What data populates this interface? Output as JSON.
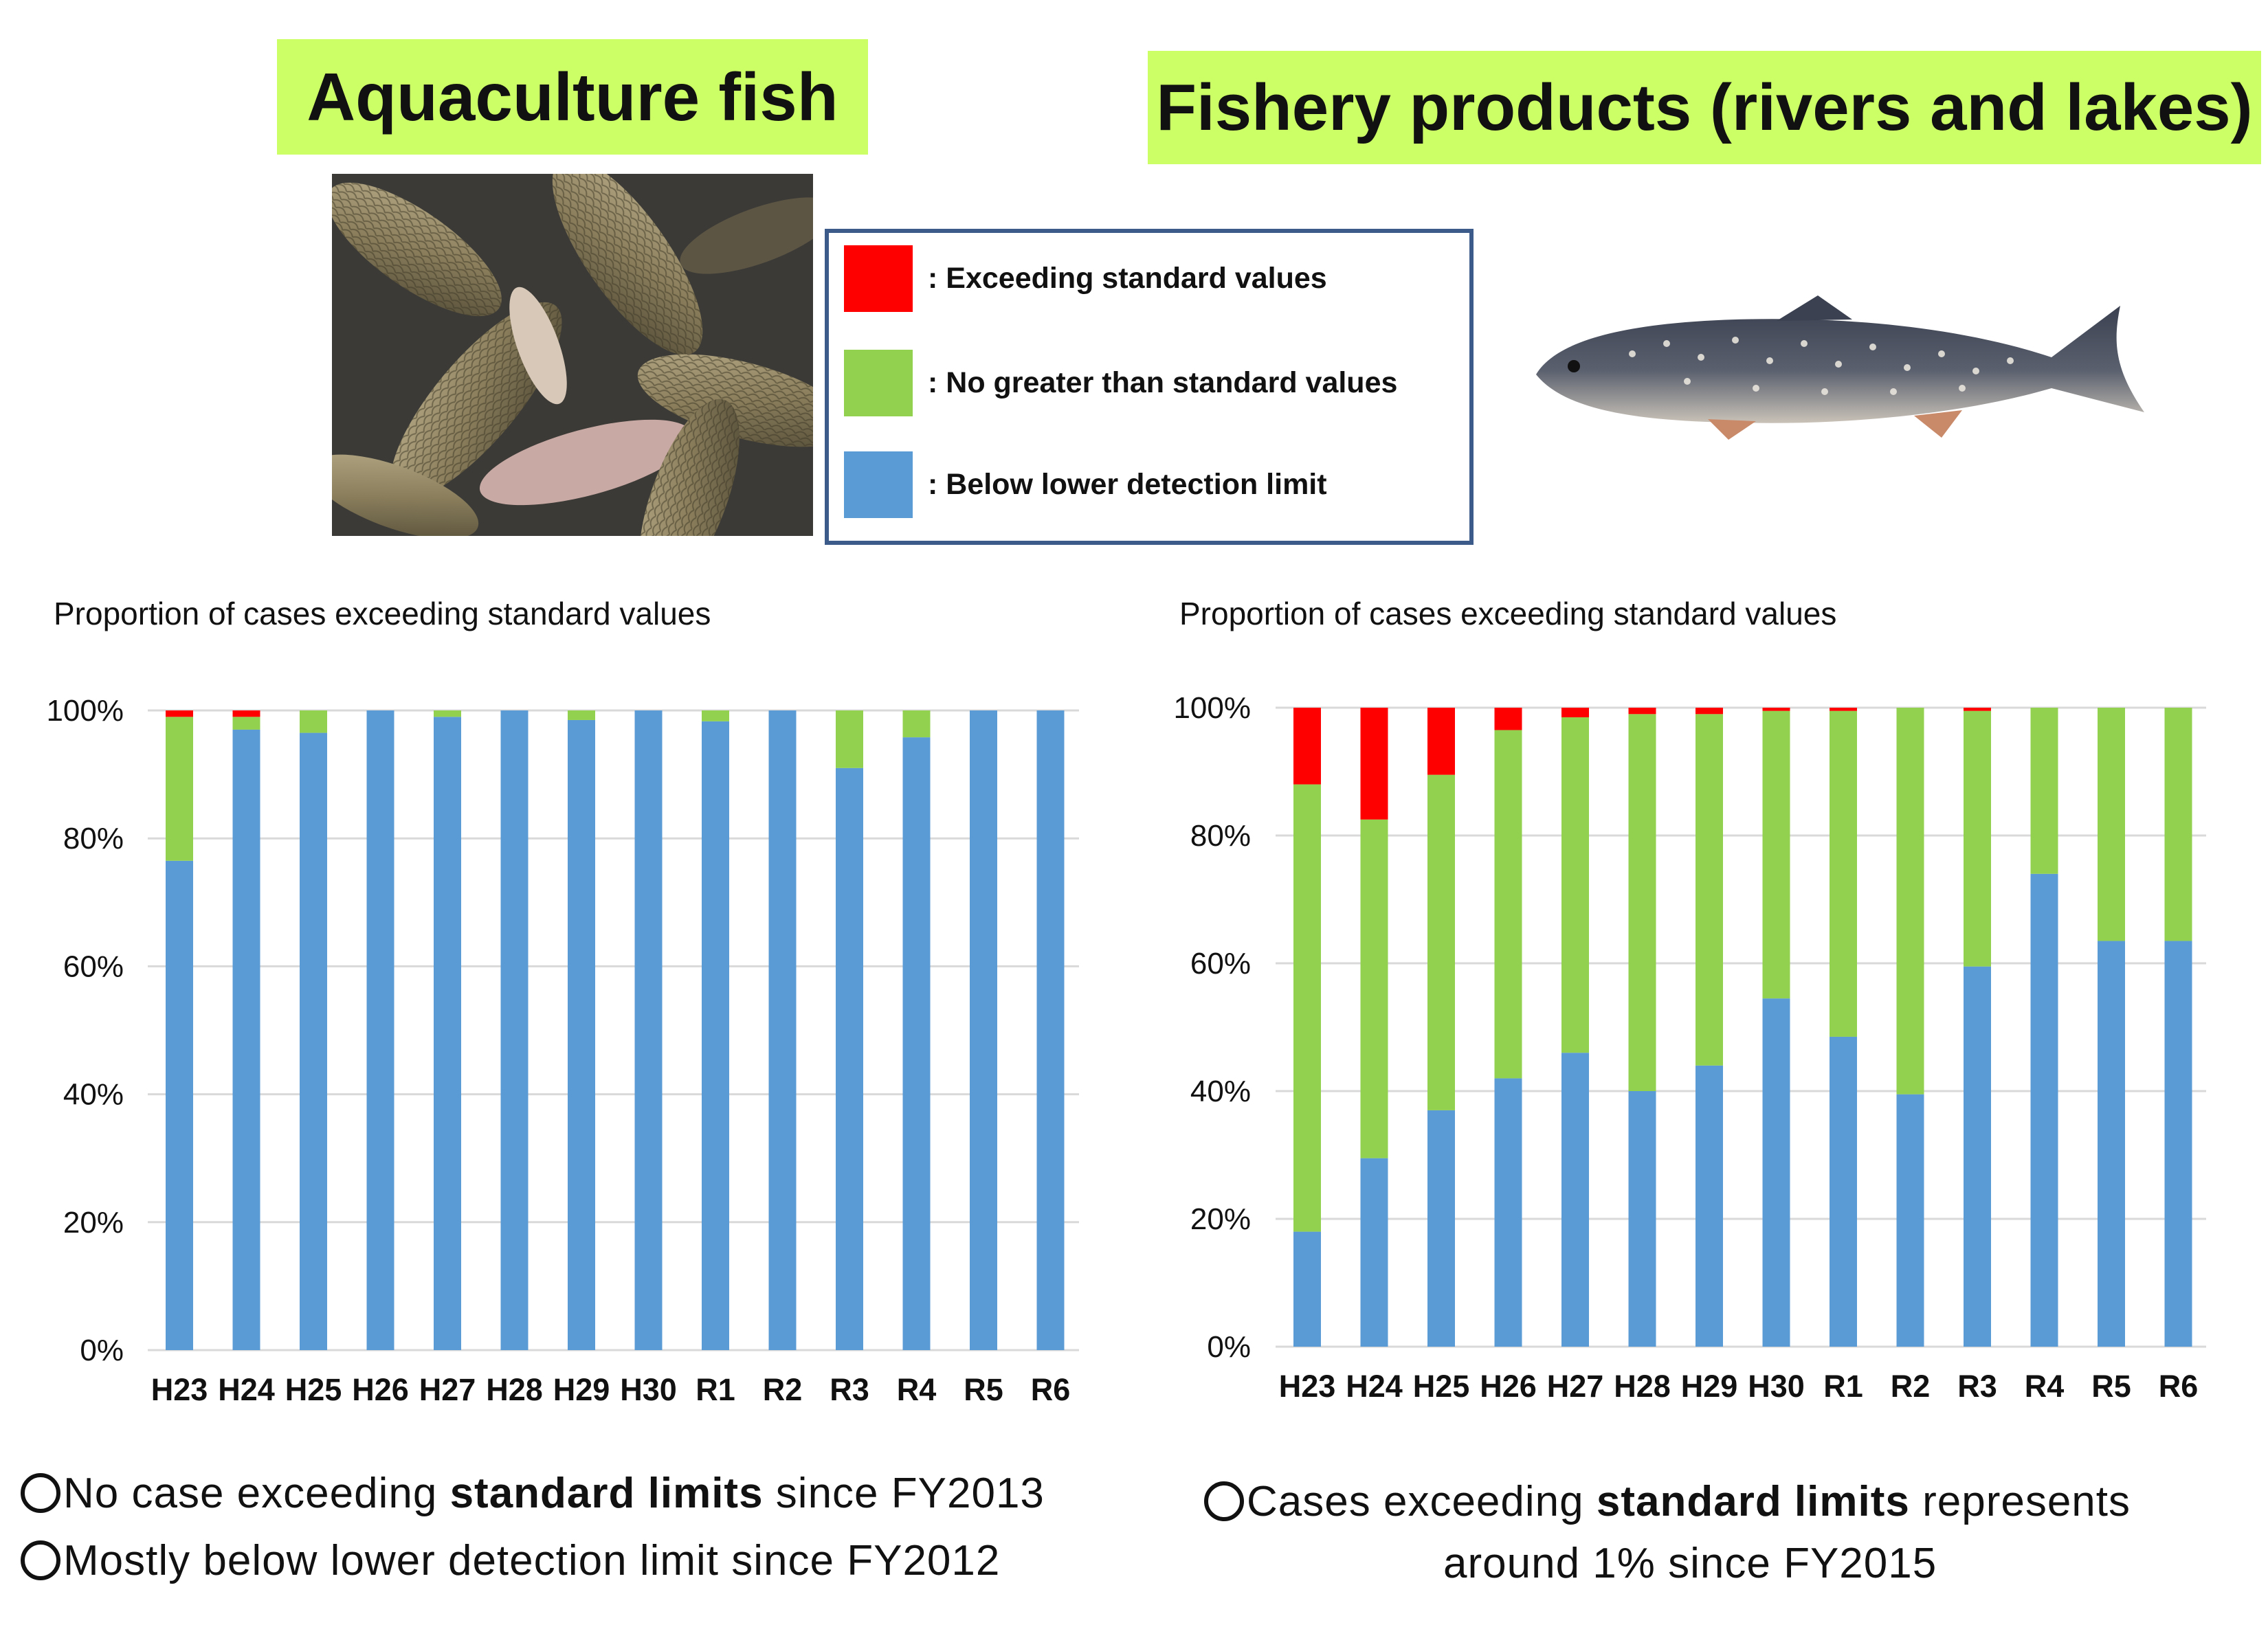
{
  "titles": {
    "left": "Aquaculture fish",
    "right": "Fishery products (rivers and lakes)"
  },
  "legend": {
    "items": [
      {
        "label": ": Exceeding standard values",
        "color": "#ff0000"
      },
      {
        "label": ": No greater than standard values",
        "color": "#92d050"
      },
      {
        "label": ": Below lower detection limit",
        "color": "#5b9bd5"
      }
    ]
  },
  "chart_subtitles": {
    "left": "Proportion of cases exceeding standard values",
    "right": "Proportion of cases exceeding standard values"
  },
  "chart_data": [
    {
      "type": "bar",
      "stacked": true,
      "title": "",
      "xlabel": "",
      "ylabel": "",
      "ylim": [
        0,
        100
      ],
      "yticks": [
        "0%",
        "20%",
        "40%",
        "60%",
        "80%",
        "100%"
      ],
      "grid": true,
      "categories": [
        "H23",
        "H24",
        "H25",
        "H26",
        "H27",
        "H28",
        "H29",
        "H30",
        "R1",
        "R2",
        "R3",
        "R4",
        "R5",
        "R6"
      ],
      "series": [
        {
          "name": "Below lower detection limit",
          "color": "#5b9bd5",
          "values": [
            76.5,
            97,
            96.5,
            100,
            99,
            100,
            98.5,
            100,
            98.3,
            100,
            91,
            95.8,
            100,
            100
          ]
        },
        {
          "name": "No greater than standard values",
          "color": "#92d050",
          "values": [
            22.5,
            2,
            3.5,
            0,
            1,
            0,
            1.5,
            0,
            1.7,
            0,
            9,
            4.2,
            0,
            0
          ]
        },
        {
          "name": "Exceeding standard values",
          "color": "#ff0000",
          "values": [
            1,
            1,
            0,
            0,
            0,
            0,
            0,
            0,
            0,
            0,
            0,
            0,
            0,
            0
          ]
        }
      ]
    },
    {
      "type": "bar",
      "stacked": true,
      "title": "",
      "xlabel": "",
      "ylabel": "",
      "ylim": [
        0,
        100
      ],
      "yticks": [
        "0%",
        "20%",
        "40%",
        "60%",
        "80%",
        "100%"
      ],
      "grid": true,
      "categories": [
        "H23",
        "H24",
        "H25",
        "H26",
        "H27",
        "H28",
        "H29",
        "H30",
        "R1",
        "R2",
        "R3",
        "R4",
        "R5",
        "R6"
      ],
      "series": [
        {
          "name": "Below lower detection limit",
          "color": "#5b9bd5",
          "values": [
            18,
            29.5,
            37,
            42,
            46,
            40,
            44,
            54.5,
            48.5,
            39.5,
            59.5,
            74,
            63.5,
            63.5
          ]
        },
        {
          "name": "No greater than standard values",
          "color": "#92d050",
          "values": [
            70,
            53,
            52.5,
            54.5,
            52.5,
            59,
            55,
            45,
            51,
            60.5,
            40,
            26,
            36.5,
            36.5
          ]
        },
        {
          "name": "Exceeding standard values",
          "color": "#ff0000",
          "values": [
            12,
            17.5,
            10.5,
            3.5,
            1.5,
            1,
            1,
            0.5,
            0.5,
            0,
            0.5,
            0,
            0,
            0
          ]
        }
      ]
    }
  ],
  "notes": {
    "left": [
      {
        "pre": "No case exceeding ",
        "bold": "standard limits",
        "post": " since FY2013"
      },
      {
        "pre": "Mostly below lower detection limit ",
        "bold": "",
        "post": " since FY2012"
      }
    ],
    "right": {
      "line1_pre": "Cases exceeding ",
      "line1_bold": "standard limits",
      "line1_post": " represents",
      "line2": "around 1% since FY2015"
    }
  }
}
